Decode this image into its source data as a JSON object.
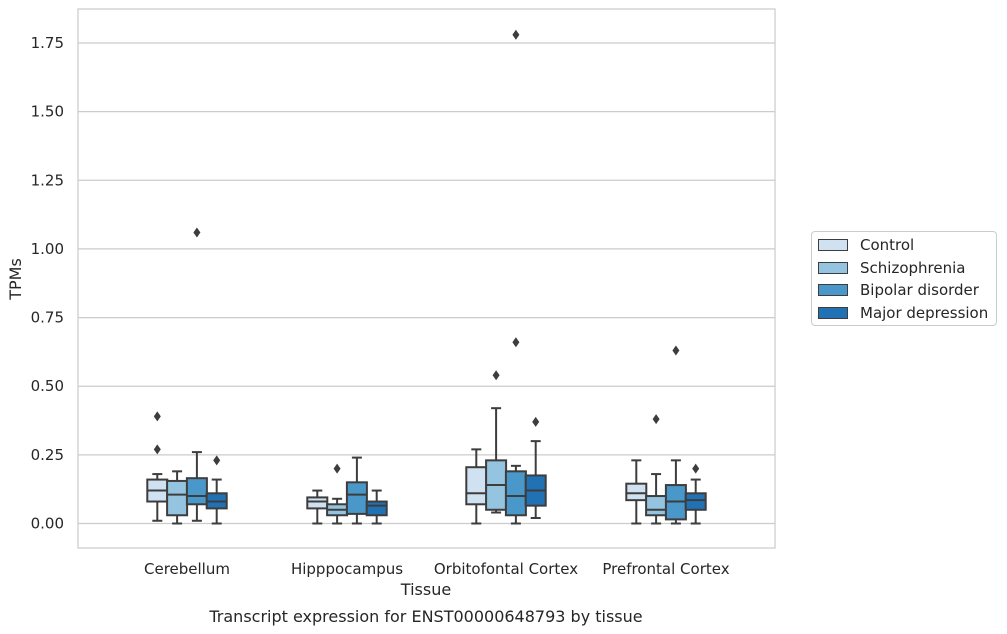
{
  "chart_data": {
    "type": "box",
    "xlabel": "Tissue",
    "ylabel": "TPMs",
    "caption": "Transcript expression for ENST00000648793 by tissue",
    "ylim": [
      -0.09,
      1.87
    ],
    "yticks": [
      "0.00",
      "0.25",
      "0.50",
      "0.75",
      "1.00",
      "1.25",
      "1.50",
      "1.75"
    ],
    "grid": "horizontal",
    "legend_position": "right",
    "categories": [
      "Cerebellum",
      "Hipppocampus",
      "Orbitofontal Cortex",
      "Prefrontal Cortex"
    ],
    "series": [
      {
        "name": "Control",
        "color": "#d0e1f2",
        "boxes": [
          {
            "whisker_low": 0.01,
            "q1": 0.08,
            "median": 0.12,
            "q3": 0.16,
            "whisker_high": 0.18,
            "outliers": [
              0.27,
              0.39
            ]
          },
          {
            "whisker_low": 0.0,
            "q1": 0.055,
            "median": 0.08,
            "q3": 0.095,
            "whisker_high": 0.12,
            "outliers": []
          },
          {
            "whisker_low": 0.0,
            "q1": 0.07,
            "median": 0.11,
            "q3": 0.205,
            "whisker_high": 0.27,
            "outliers": []
          },
          {
            "whisker_low": 0.0,
            "q1": 0.085,
            "median": 0.11,
            "q3": 0.145,
            "whisker_high": 0.23,
            "outliers": []
          }
        ]
      },
      {
        "name": "Schizophrenia",
        "color": "#94c4df",
        "boxes": [
          {
            "whisker_low": 0.0,
            "q1": 0.03,
            "median": 0.105,
            "q3": 0.155,
            "whisker_high": 0.19,
            "outliers": []
          },
          {
            "whisker_low": 0.0,
            "q1": 0.03,
            "median": 0.05,
            "q3": 0.07,
            "whisker_high": 0.09,
            "outliers": [
              0.2
            ]
          },
          {
            "whisker_low": 0.04,
            "q1": 0.05,
            "median": 0.14,
            "q3": 0.23,
            "whisker_high": 0.42,
            "outliers": [
              0.54
            ]
          },
          {
            "whisker_low": 0.0,
            "q1": 0.03,
            "median": 0.05,
            "q3": 0.1,
            "whisker_high": 0.18,
            "outliers": [
              0.38
            ]
          }
        ]
      },
      {
        "name": "Bipolar disorder",
        "color": "#4a98c9",
        "boxes": [
          {
            "whisker_low": 0.01,
            "q1": 0.07,
            "median": 0.1,
            "q3": 0.165,
            "whisker_high": 0.26,
            "outliers": [
              1.06
            ]
          },
          {
            "whisker_low": 0.0,
            "q1": 0.035,
            "median": 0.105,
            "q3": 0.15,
            "whisker_high": 0.24,
            "outliers": []
          },
          {
            "whisker_low": 0.0,
            "q1": 0.03,
            "median": 0.1,
            "q3": 0.19,
            "whisker_high": 0.21,
            "outliers": [
              0.66,
              1.78
            ]
          },
          {
            "whisker_low": 0.0,
            "q1": 0.015,
            "median": 0.08,
            "q3": 0.14,
            "whisker_high": 0.23,
            "outliers": [
              0.63
            ]
          }
        ]
      },
      {
        "name": "Major depression",
        "color": "#2171b5",
        "boxes": [
          {
            "whisker_low": 0.0,
            "q1": 0.055,
            "median": 0.08,
            "q3": 0.11,
            "whisker_high": 0.16,
            "outliers": [
              0.23
            ]
          },
          {
            "whisker_low": 0.0,
            "q1": 0.03,
            "median": 0.065,
            "q3": 0.08,
            "whisker_high": 0.12,
            "outliers": []
          },
          {
            "whisker_low": 0.02,
            "q1": 0.065,
            "median": 0.12,
            "q3": 0.175,
            "whisker_high": 0.3,
            "outliers": [
              0.37
            ]
          },
          {
            "whisker_low": 0.0,
            "q1": 0.05,
            "median": 0.085,
            "q3": 0.11,
            "whisker_high": 0.16,
            "outliers": [
              0.2
            ]
          }
        ]
      }
    ]
  }
}
